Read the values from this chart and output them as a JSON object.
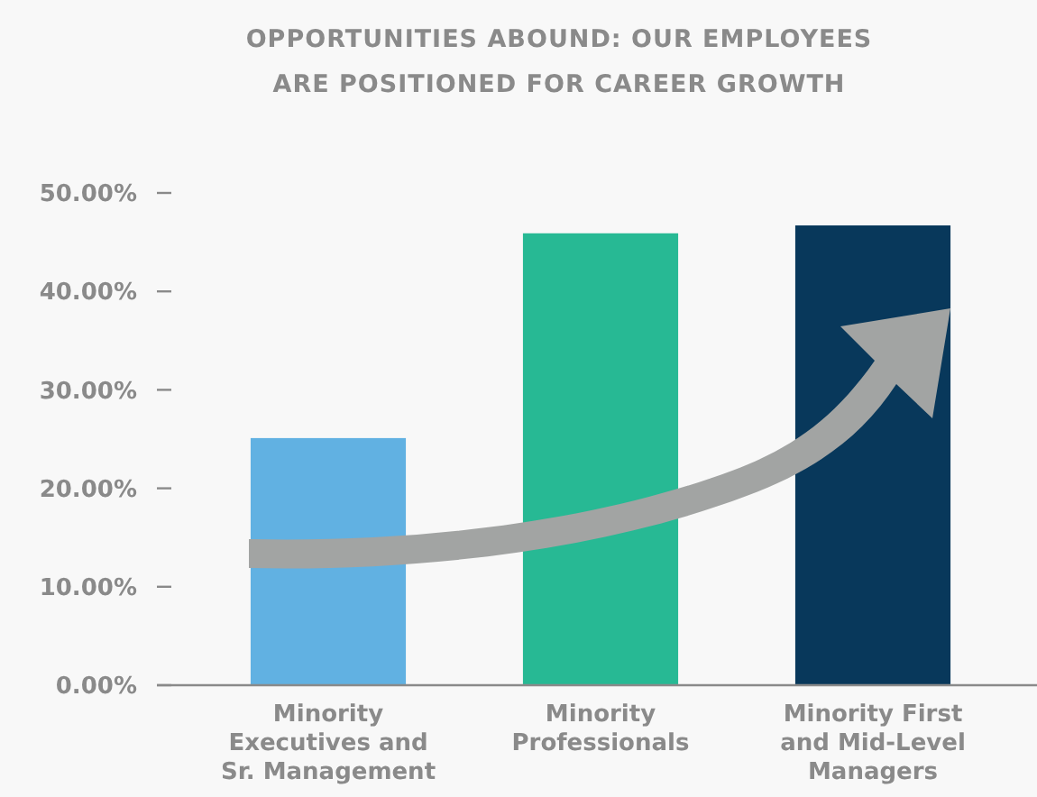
{
  "chart_data": {
    "type": "bar",
    "title": "OPPORTUNITIES ABOUND: OUR EMPLOYEES\nARE POSITIONED FOR CAREER GROWTH",
    "categories": [
      "Minority\nExecutives and\nSr. Management",
      "Minority\nProfessionals",
      "Minority First\nand Mid-Level\nManagers"
    ],
    "values": [
      25.1,
      45.9,
      46.7
    ],
    "colors": [
      "#61b1e2",
      "#27b994",
      "#08385b"
    ],
    "ylim": [
      0,
      50
    ],
    "yticks": [
      {
        "value": 0,
        "label": "0.00%"
      },
      {
        "value": 10,
        "label": "10.00%"
      },
      {
        "value": 20,
        "label": "20.00%"
      },
      {
        "value": 30,
        "label": "30.00%"
      },
      {
        "value": 40,
        "label": "40.00%"
      },
      {
        "value": 50,
        "label": "50.00%"
      }
    ],
    "grid": false
  }
}
